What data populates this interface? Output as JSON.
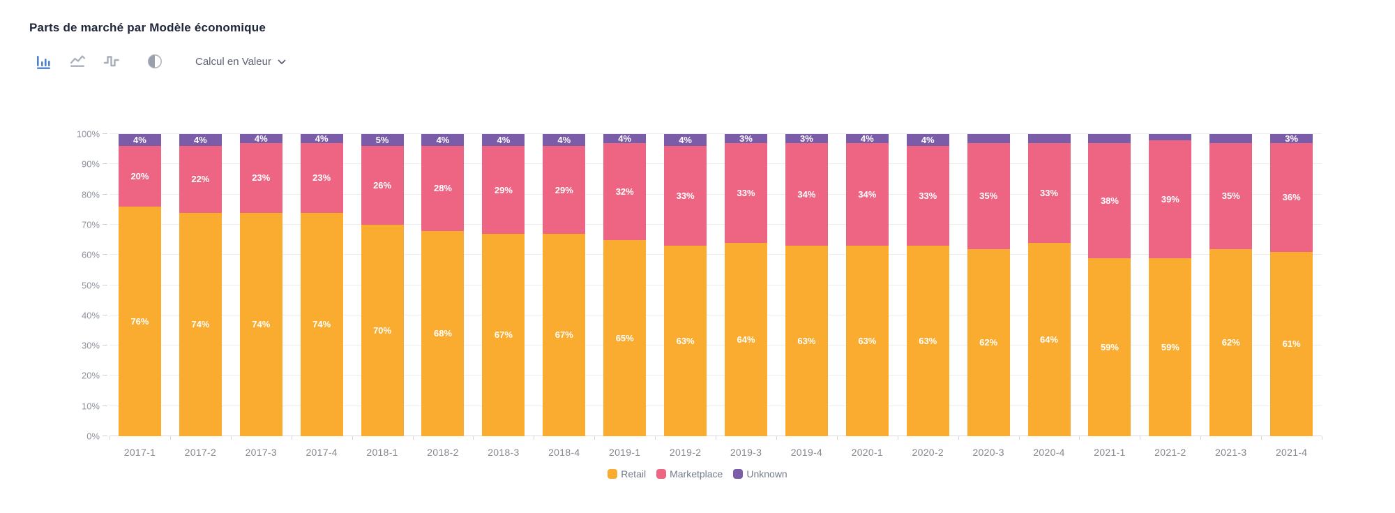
{
  "title": "Parts de marché par Modèle économique",
  "toolbar": {
    "dropdown_label": "Calcul en Valeur",
    "icons": [
      {
        "name": "bar-chart",
        "active": true
      },
      {
        "name": "line-chart",
        "active": false
      },
      {
        "name": "step-chart",
        "active": false
      },
      {
        "name": "contrast",
        "active": false
      }
    ]
  },
  "colors": {
    "retail": "#f9ac2f",
    "marketplace": "#ee6583",
    "unknown": "#7a5ca8",
    "active_icon": "#4b80d1",
    "inactive_icon": "#a8adba"
  },
  "chart_data": {
    "type": "bar",
    "stacked": true,
    "title": "Parts de marché par Modèle économique",
    "xlabel": "",
    "ylabel": "",
    "ylim": [
      0,
      100
    ],
    "grid": true,
    "legend_position": "bottom",
    "value_unit": "%",
    "y_ticks": [
      "0%",
      "10%",
      "20%",
      "30%",
      "40%",
      "50%",
      "60%",
      "70%",
      "80%",
      "90%",
      "100%"
    ],
    "categories": [
      "2017-1",
      "2017-2",
      "2017-3",
      "2017-4",
      "2018-1",
      "2018-2",
      "2018-3",
      "2018-4",
      "2019-1",
      "2019-2",
      "2019-3",
      "2019-4",
      "2020-1",
      "2020-2",
      "2020-3",
      "2020-4",
      "2021-1",
      "2021-2",
      "2021-3",
      "2021-4"
    ],
    "series": [
      {
        "name": "Retail",
        "color": "#f9ac2f",
        "values": [
          76,
          74,
          74,
          74,
          70,
          68,
          67,
          67,
          65,
          63,
          64,
          63,
          63,
          63,
          62,
          64,
          59,
          59,
          62,
          61
        ],
        "labels": [
          "76%",
          "74%",
          "74%",
          "74%",
          "70%",
          "68%",
          "67%",
          "67%",
          "65%",
          "63%",
          "64%",
          "63%",
          "63%",
          "63%",
          "62%",
          "64%",
          "59%",
          "59%",
          "62%",
          "61%"
        ]
      },
      {
        "name": "Marketplace",
        "color": "#ee6583",
        "values": [
          20,
          22,
          23,
          23,
          26,
          28,
          29,
          29,
          32,
          33,
          33,
          34,
          34,
          33,
          35,
          33,
          38,
          39,
          35,
          36
        ],
        "labels": [
          "20%",
          "22%",
          "23%",
          "23%",
          "26%",
          "28%",
          "29%",
          "29%",
          "32%",
          "33%",
          "33%",
          "34%",
          "34%",
          "33%",
          "35%",
          "33%",
          "38%",
          "39%",
          "35%",
          "36%"
        ]
      },
      {
        "name": "Unknown",
        "color": "#7a5ca8",
        "values": [
          4,
          4,
          4,
          4,
          5,
          4,
          4,
          4,
          4,
          4,
          3,
          3,
          4,
          4,
          3,
          3,
          3,
          2,
          3,
          3
        ],
        "labels": [
          "4%",
          "4%",
          "4%",
          "4%",
          "5%",
          "4%",
          "4%",
          "4%",
          "4%",
          "4%",
          "3%",
          "3%",
          "4%",
          "4%",
          "",
          "",
          "",
          "",
          "",
          "3%"
        ]
      }
    ]
  }
}
